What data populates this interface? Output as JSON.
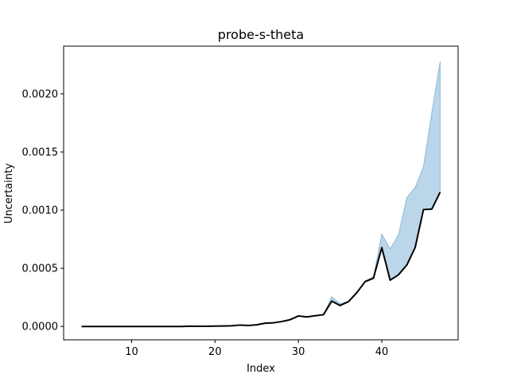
{
  "chart_data": {
    "type": "line",
    "title": "probe-s-theta",
    "xlabel": "Index",
    "ylabel": "Uncertainty",
    "xlim": [
      1.85,
      49.15
    ],
    "ylim": [
      -0.000115,
      0.00241
    ],
    "xticks": [
      10,
      20,
      30,
      40
    ],
    "xtick_labels": [
      "10",
      "20",
      "30",
      "40"
    ],
    "yticks": [
      0.0,
      0.0005,
      0.001,
      0.0015,
      0.002
    ],
    "ytick_labels": [
      "0.0000",
      "0.0005",
      "0.0010",
      "0.0015",
      "0.0020"
    ],
    "grid": false,
    "legend": "none",
    "x": [
      4,
      5,
      6,
      7,
      8,
      9,
      10,
      11,
      12,
      13,
      14,
      15,
      16,
      17,
      18,
      19,
      20,
      21,
      22,
      23,
      24,
      25,
      26,
      27,
      28,
      29,
      30,
      31,
      32,
      33,
      34,
      35,
      36,
      37,
      38,
      39,
      40,
      41,
      42,
      43,
      44,
      45,
      46,
      47
    ],
    "series": [
      {
        "values": [
          0.0,
          0.0,
          0.0,
          0.0,
          0.0,
          0.0,
          0.0,
          0.0,
          0.0,
          0.0,
          0.0,
          0.0,
          0.0,
          2e-06,
          1e-06,
          1e-06,
          3e-06,
          4e-06,
          6e-06,
          1.2e-05,
          8e-06,
          1.4e-05,
          2.8e-05,
          3.1e-05,
          4.2e-05,
          5.8e-05,
          9e-05,
          8.2e-05,
          9.2e-05,
          0.000101,
          0.000218,
          0.00018,
          0.000213,
          0.00029,
          0.000385,
          0.000415,
          0.000678,
          0.000398,
          0.000444,
          0.000528,
          0.000678,
          0.001005,
          0.001009,
          0.001155
        ],
        "color": "#000000"
      }
    ],
    "band": {
      "lower": [
        0.0,
        0.0,
        0.0,
        0.0,
        0.0,
        0.0,
        0.0,
        0.0,
        0.0,
        0.0,
        0.0,
        0.0,
        0.0,
        2e-06,
        1e-06,
        1e-06,
        3e-06,
        4e-06,
        6e-06,
        1.2e-05,
        8e-06,
        1.4e-05,
        2.8e-05,
        3.1e-05,
        4.2e-05,
        5.8e-05,
        9e-05,
        8.2e-05,
        9.2e-05,
        0.000101,
        0.000218,
        0.00018,
        0.000213,
        0.00029,
        0.000385,
        0.000415,
        0.000678,
        0.000398,
        0.000444,
        0.000528,
        0.000678,
        0.001005,
        0.001009,
        0.001155
      ],
      "upper": [
        0.0,
        0.0,
        0.0,
        0.0,
        0.0,
        0.0,
        0.0,
        0.0,
        0.0,
        0.0,
        0.0,
        0.0,
        0.0,
        2e-06,
        1e-06,
        1e-06,
        3e-06,
        4e-06,
        6e-06,
        1.2e-05,
        8e-06,
        1.4e-05,
        2.8e-05,
        3.1e-05,
        4.2e-05,
        5.8e-05,
        9e-05,
        8.2e-05,
        9.2e-05,
        0.000101,
        0.000255,
        0.000196,
        0.000218,
        0.000298,
        0.000392,
        0.000428,
        0.000795,
        0.000668,
        0.000788,
        0.001108,
        0.001195,
        0.001375,
        0.00184,
        0.00228
      ],
      "color": "#1f77b4",
      "opacity": 0.3
    }
  }
}
